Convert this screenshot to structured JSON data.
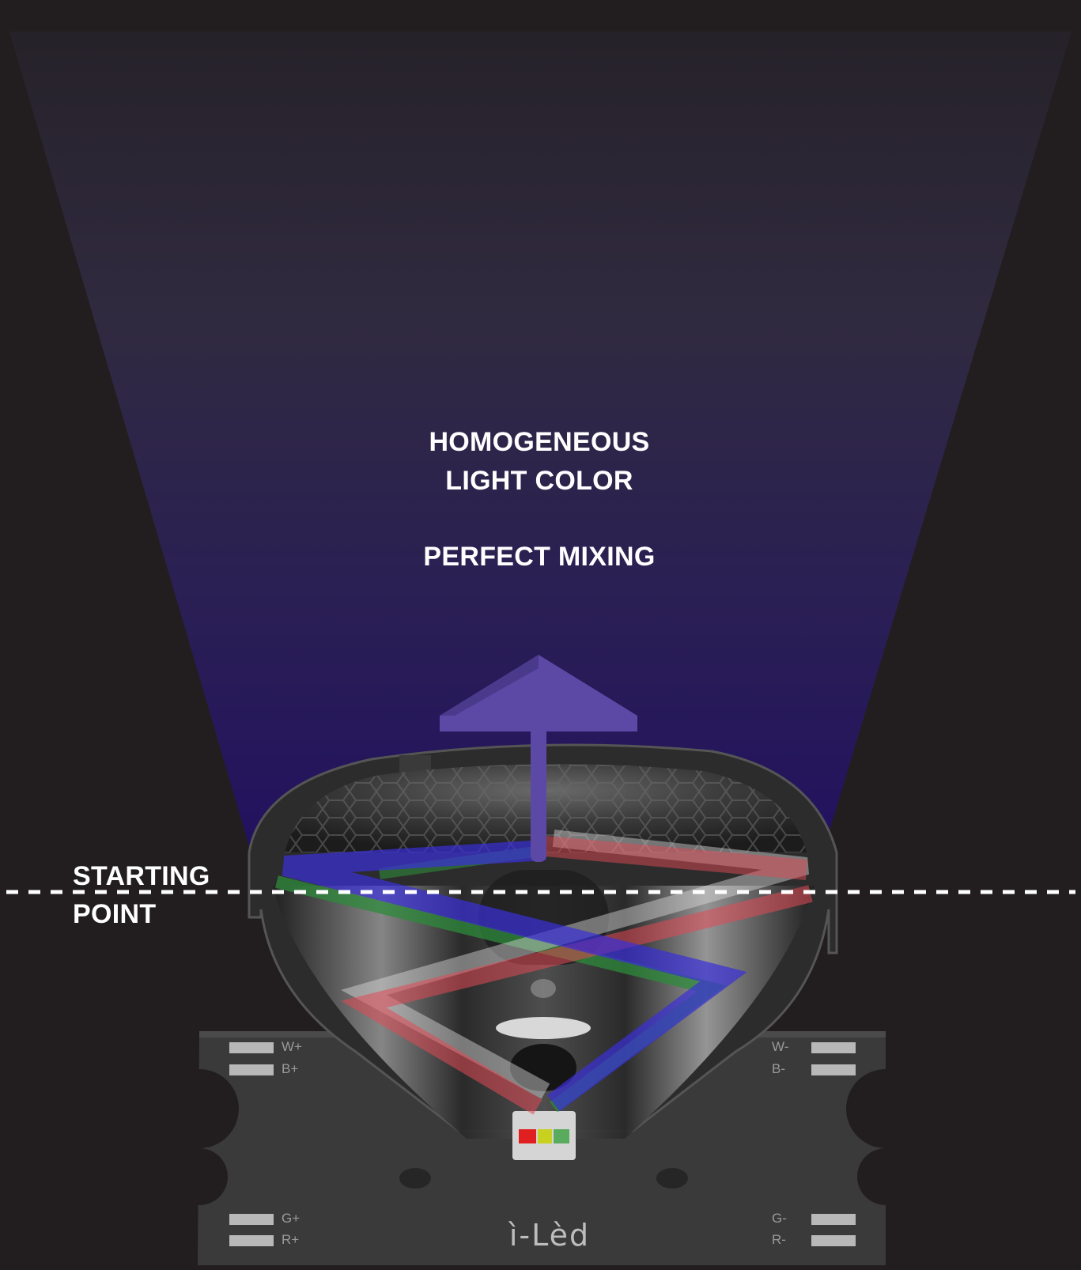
{
  "labels": {
    "headline_line1": "HOMOGENEOUS",
    "headline_line2": "LIGHT COLOR",
    "subheadline": "PERFECT MIXING",
    "starting_line1": "STARTING",
    "starting_line2": "POINT"
  },
  "board": {
    "brand": "ì-Lèd",
    "pads": {
      "top_left_1": "W+",
      "top_left_2": "B+",
      "top_right_1": "W-",
      "top_right_2": "B-",
      "bottom_left_1": "G+",
      "bottom_left_2": "R+",
      "bottom_right_1": "G-",
      "bottom_right_2": "R-"
    }
  },
  "colors": {
    "background": "#221e20",
    "beam_top": "#2a2630",
    "beam_bottom": "#24135e",
    "arrow": "#5c49a6",
    "ray_blue": "#3a2fd8",
    "ray_red": "#e04a55",
    "ray_green": "#2e8a3a",
    "ray_white": "#dcdcdc"
  },
  "icons": {
    "arrow": "up-arrow-icon",
    "led": "rgb-led-chip-icon"
  }
}
